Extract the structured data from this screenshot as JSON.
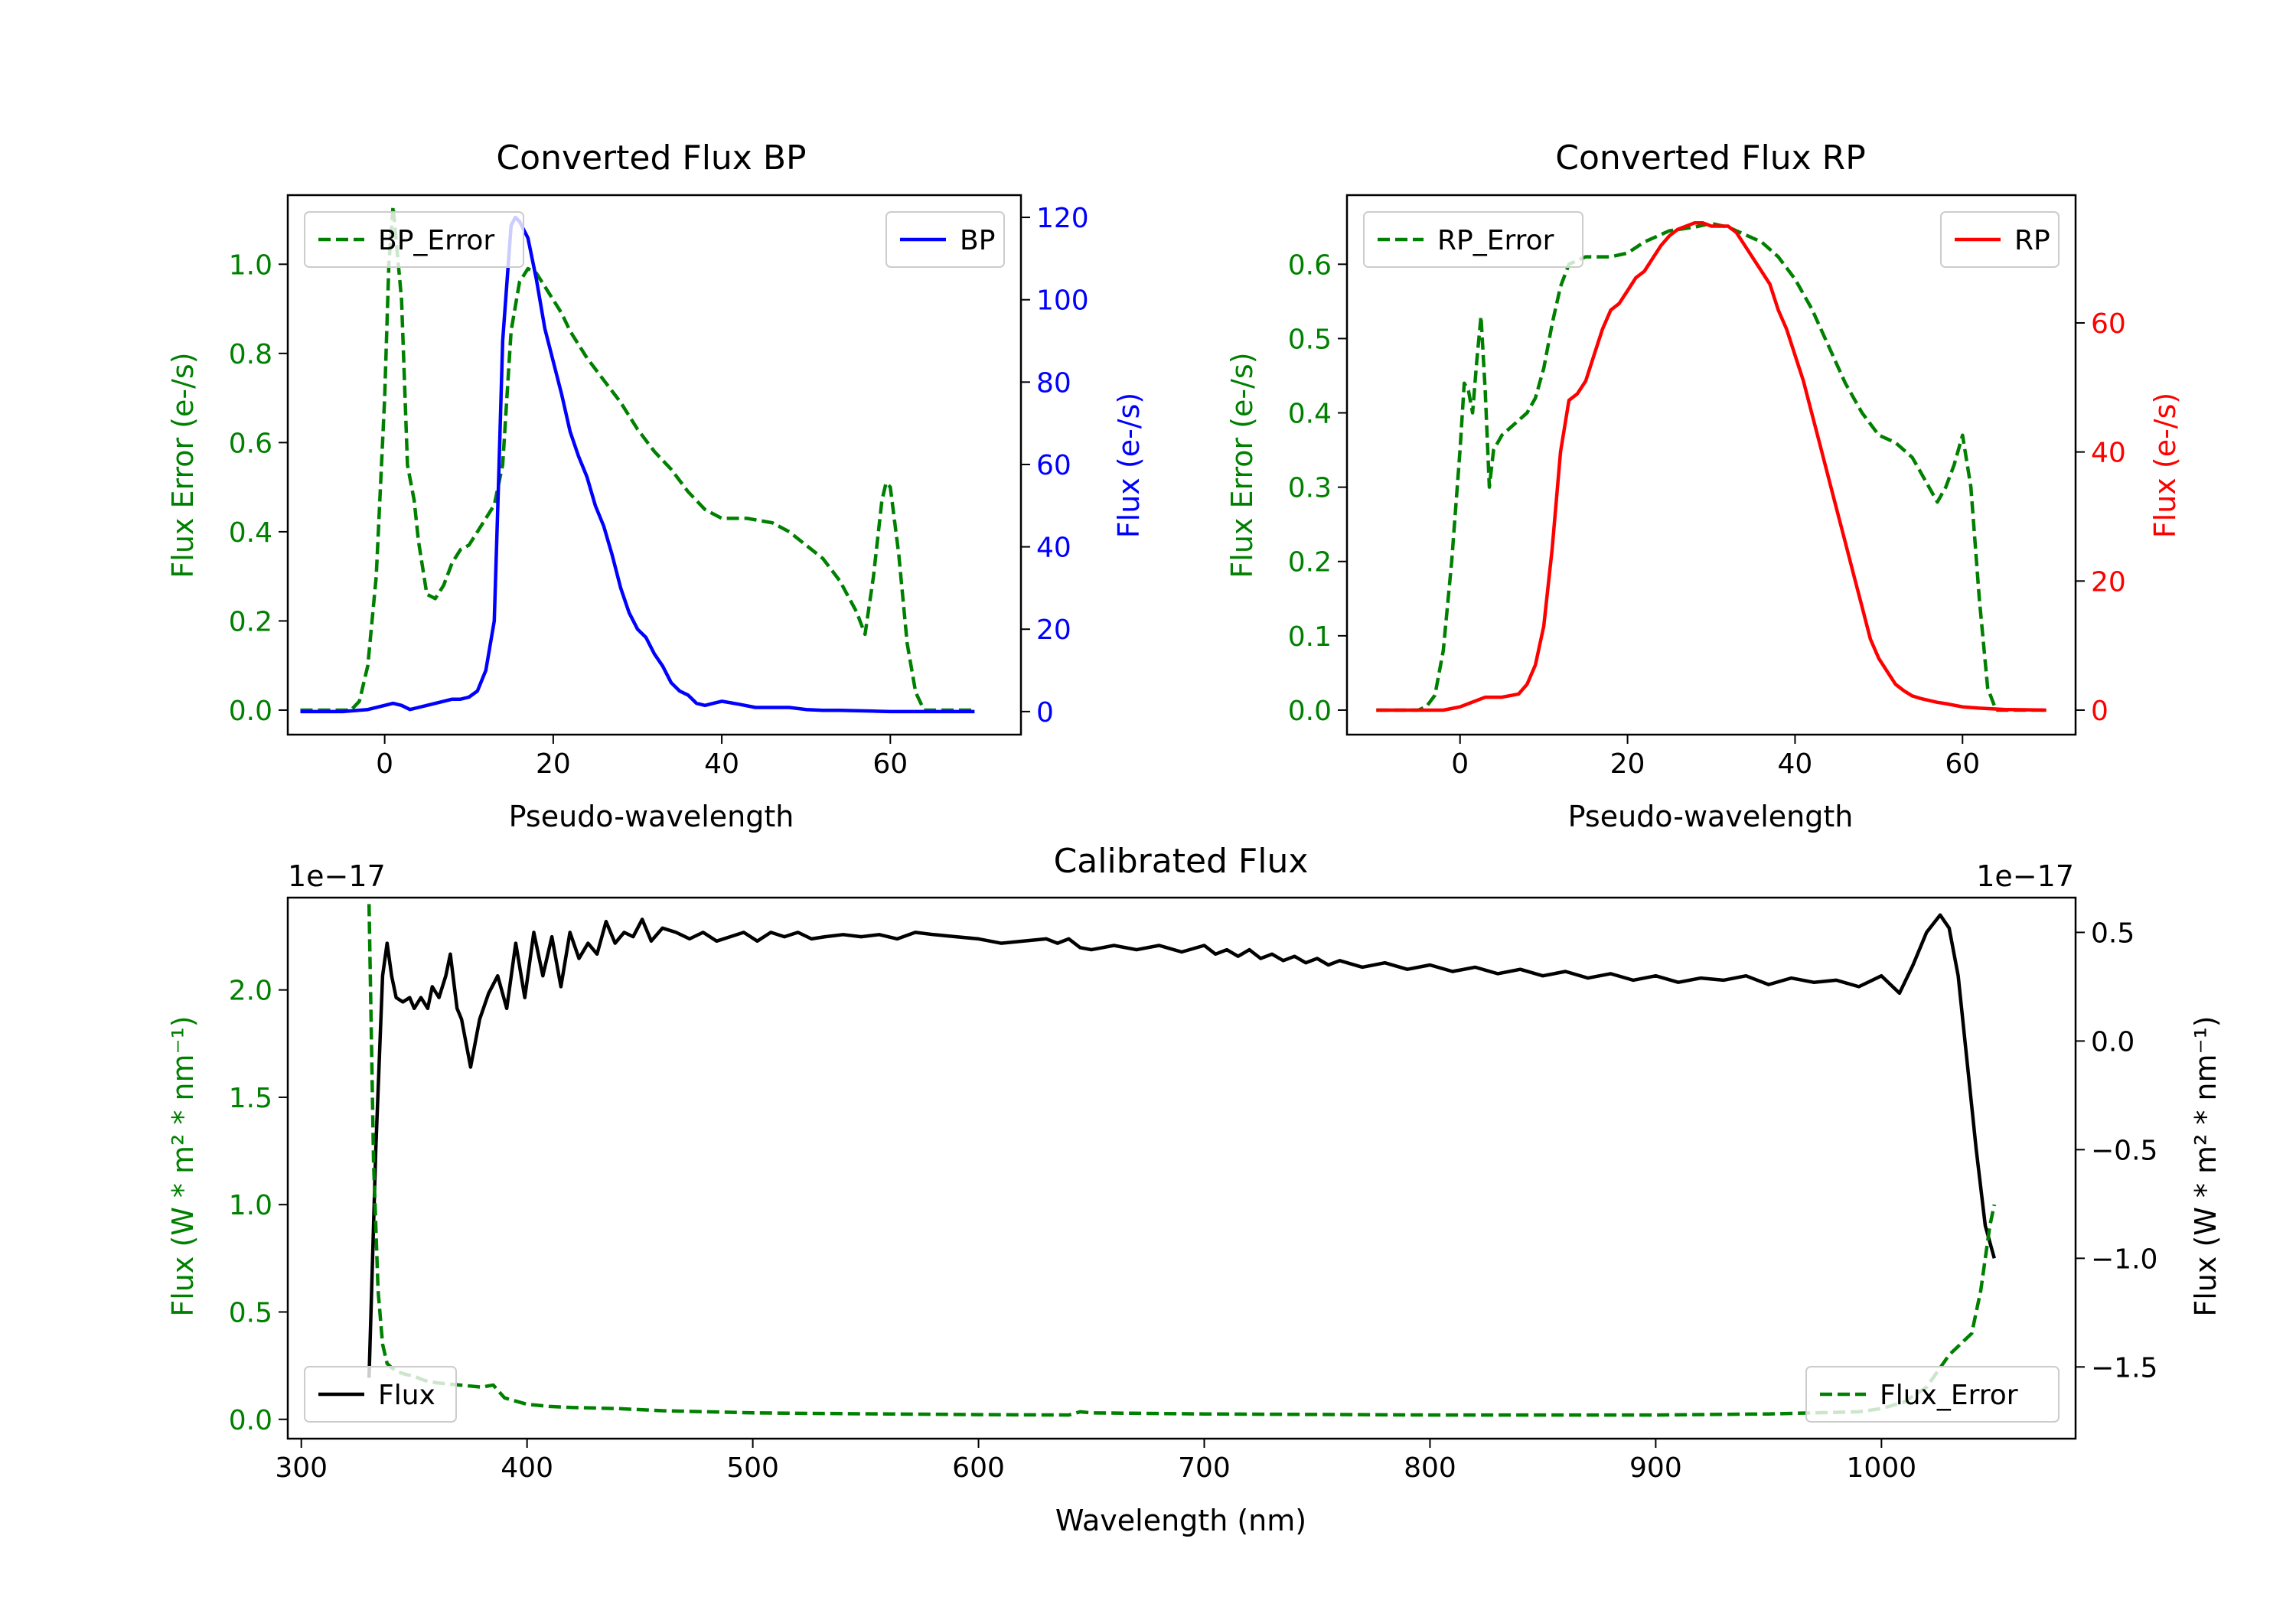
{
  "chart_data": [
    {
      "type": "line",
      "title": "Converted Flux BP",
      "xlabel": "Pseudo-wavelength",
      "ylabel_left": "Flux Error (e-/s)",
      "ylabel_right": "Flux (e-/s)",
      "xlim": [
        -11.5,
        75.5
      ],
      "ylim_left": [
        -0.055,
        1.155
      ],
      "ylim_right": [
        -5.6,
        125.4
      ],
      "xticks": [
        "0",
        "20",
        "40",
        "60"
      ],
      "yticks_left": [
        "0.0",
        "0.2",
        "0.4",
        "0.6",
        "0.8",
        "1.0"
      ],
      "yticks_right": [
        "0",
        "20",
        "40",
        "60",
        "80",
        "100",
        "120"
      ],
      "series": [
        {
          "name": "BP_Error",
          "axis": "left",
          "style": "dashed",
          "color": "#008000",
          "x": [
            -10,
            -4,
            -3,
            -2,
            -1,
            0,
            0.5,
            1,
            2,
            2.7,
            3.5,
            4,
            5,
            6,
            7,
            8,
            9,
            10,
            11,
            12,
            13,
            14,
            15,
            16,
            17,
            18,
            19,
            20,
            21,
            22,
            24,
            26,
            28,
            30,
            32,
            34,
            36,
            38,
            40,
            43,
            46,
            48,
            50,
            52,
            54,
            56,
            57,
            58,
            59,
            59.5,
            60,
            61,
            62,
            63,
            64,
            66,
            70
          ],
          "y": [
            0.0,
            0.0,
            0.02,
            0.1,
            0.3,
            0.7,
            1.0,
            1.13,
            0.92,
            0.55,
            0.47,
            0.38,
            0.26,
            0.25,
            0.28,
            0.33,
            0.36,
            0.37,
            0.4,
            0.43,
            0.46,
            0.55,
            0.85,
            0.96,
            0.99,
            0.98,
            0.95,
            0.92,
            0.89,
            0.85,
            0.79,
            0.74,
            0.69,
            0.63,
            0.58,
            0.54,
            0.49,
            0.45,
            0.43,
            0.43,
            0.42,
            0.4,
            0.37,
            0.34,
            0.29,
            0.22,
            0.17,
            0.3,
            0.47,
            0.51,
            0.5,
            0.35,
            0.15,
            0.04,
            0.0,
            0.0,
            0.0
          ]
        },
        {
          "name": "BP",
          "axis": "right",
          "style": "solid",
          "color": "#0000ff",
          "x": [
            -10,
            -5,
            -2,
            0,
            1,
            2,
            3,
            4,
            5,
            7,
            8,
            9,
            10,
            11,
            12,
            13,
            13.5,
            14,
            15,
            15.5,
            16,
            17,
            18,
            19,
            20,
            21,
            22,
            23,
            24,
            25,
            26,
            27,
            28,
            29,
            30,
            31,
            32,
            33,
            34,
            35,
            36,
            37,
            38,
            39,
            40,
            42,
            44,
            46,
            48,
            50,
            52,
            54,
            56,
            58,
            60,
            65,
            70
          ],
          "y": [
            0,
            0,
            0.5,
            1.5,
            2,
            1.5,
            0.5,
            1,
            1.5,
            2.5,
            3,
            3,
            3.5,
            5,
            10,
            22,
            55,
            90,
            118,
            120,
            119,
            115,
            105,
            93,
            85,
            77,
            68,
            62,
            57,
            50,
            45,
            38,
            30,
            24,
            20,
            18,
            14,
            11,
            7,
            5,
            4,
            2,
            1.5,
            2,
            2.5,
            1.8,
            1,
            1,
            1,
            0.5,
            0.3,
            0.3,
            0.2,
            0.1,
            0,
            0,
            0
          ]
        }
      ],
      "legend": [
        {
          "label": "BP_Error",
          "location": "upper left"
        },
        {
          "label": "BP",
          "location": "upper right"
        }
      ]
    },
    {
      "type": "line",
      "title": "Converted Flux RP",
      "xlabel": "Pseudo-wavelength",
      "ylabel_left": "Flux Error (e-/s)",
      "ylabel_right": "Flux (e-/s)",
      "xlim": [
        -13.5,
        73.5
      ],
      "ylim_left": [
        -0.033,
        0.693
      ],
      "ylim_right": [
        -3.8,
        79.8
      ],
      "xticks": [
        "0",
        "20",
        "40",
        "60"
      ],
      "yticks_left": [
        "0.0",
        "0.1",
        "0.2",
        "0.3",
        "0.4",
        "0.5",
        "0.6"
      ],
      "yticks_right": [
        "0",
        "20",
        "40",
        "60"
      ],
      "series": [
        {
          "name": "RP_Error",
          "axis": "left",
          "style": "dashed",
          "color": "#008000",
          "x": [
            -10,
            -5,
            -4,
            -3,
            -2,
            -1,
            0,
            0.5,
            1,
            1.5,
            2,
            2.5,
            3,
            3.5,
            4,
            5,
            6,
            7,
            8,
            9,
            10,
            11,
            12,
            13,
            14,
            15,
            16,
            18,
            20,
            22,
            25,
            28,
            30,
            32,
            34,
            36,
            38,
            40,
            42,
            44,
            46,
            48,
            50,
            52,
            54,
            55,
            56,
            57,
            58,
            59,
            60,
            61,
            62,
            63,
            64,
            66,
            70
          ],
          "y": [
            0.0,
            0.0,
            0.005,
            0.02,
            0.08,
            0.2,
            0.35,
            0.44,
            0.43,
            0.4,
            0.47,
            0.53,
            0.43,
            0.3,
            0.35,
            0.37,
            0.38,
            0.39,
            0.4,
            0.42,
            0.46,
            0.52,
            0.57,
            0.6,
            0.605,
            0.61,
            0.61,
            0.61,
            0.615,
            0.63,
            0.645,
            0.65,
            0.655,
            0.65,
            0.64,
            0.63,
            0.61,
            0.58,
            0.54,
            0.49,
            0.44,
            0.4,
            0.37,
            0.36,
            0.34,
            0.32,
            0.3,
            0.28,
            0.3,
            0.33,
            0.37,
            0.3,
            0.15,
            0.03,
            0.0,
            0.0,
            0.0
          ]
        },
        {
          "name": "RP",
          "axis": "right",
          "style": "solid",
          "color": "#ff0000",
          "x": [
            -10,
            -5,
            -2,
            0,
            1,
            2,
            3,
            5,
            7,
            8,
            9,
            10,
            11,
            12,
            13,
            14,
            15,
            16,
            17,
            18,
            19,
            20,
            21,
            22,
            23,
            24,
            25,
            26,
            27,
            28,
            29,
            30,
            31,
            32,
            33,
            34,
            35,
            36,
            37,
            38,
            39,
            40,
            41,
            42,
            43,
            44,
            45,
            46,
            47,
            48,
            49,
            50,
            51,
            52,
            53,
            54,
            55,
            56,
            57,
            58,
            60,
            62,
            65,
            70
          ],
          "y": [
            0,
            0,
            0,
            0.5,
            1,
            1.5,
            2,
            2,
            2.5,
            4,
            7,
            13,
            25,
            40,
            48,
            49,
            51,
            55,
            59,
            62,
            63,
            65,
            67,
            68,
            70,
            72,
            73.5,
            74.5,
            75,
            75.5,
            75.5,
            75,
            75,
            75,
            74,
            72,
            70,
            68,
            66,
            62,
            59,
            55,
            51,
            46,
            41,
            36,
            31,
            26,
            21,
            16,
            11,
            8,
            6,
            4,
            3,
            2.2,
            1.8,
            1.5,
            1.2,
            1,
            0.5,
            0.3,
            0.1,
            0
          ]
        }
      ],
      "legend": [
        {
          "label": "RP_Error",
          "location": "upper left"
        },
        {
          "label": "RP",
          "location": "upper right"
        }
      ]
    },
    {
      "type": "line",
      "title": "Calibrated Flux",
      "xlabel": "Wavelength (nm)",
      "ylabel_left": "Flux (W * m² * nm⁻¹)",
      "ylabel_right": "Flux (W * m² * nm⁻¹)",
      "offset_left": "1e−17",
      "offset_right": "1e−17",
      "xlim": [
        294,
        1086
      ],
      "ylim_left": [
        -0.09,
        2.43
      ],
      "ylim_right": [
        -1.83,
        0.66
      ],
      "xticks": [
        "300",
        "400",
        "500",
        "600",
        "700",
        "800",
        "900",
        "1000"
      ],
      "yticks_left": [
        "0.0",
        "0.5",
        "1.0",
        "1.5",
        "2.0"
      ],
      "yticks_right": [
        "−1.5",
        "−1.0",
        "−0.5",
        "0.0",
        "0.5"
      ],
      "series": [
        {
          "name": "Flux",
          "axis": "right",
          "style": "solid",
          "color": "#000000",
          "x": [
            330,
            333,
            336,
            338,
            340,
            342,
            345,
            348,
            350,
            353,
            356,
            358,
            361,
            364,
            366,
            369,
            371,
            375,
            379,
            383,
            387,
            391,
            395,
            399,
            403,
            407,
            411,
            415,
            419,
            423,
            427,
            431,
            435,
            439,
            443,
            447,
            451,
            455,
            460,
            466,
            472,
            478,
            484,
            490,
            496,
            502,
            508,
            514,
            520,
            526,
            532,
            540,
            548,
            556,
            564,
            572,
            580,
            590,
            600,
            610,
            620,
            630,
            635,
            640,
            645,
            650,
            655,
            660,
            670,
            680,
            690,
            700,
            705,
            710,
            715,
            720,
            725,
            730,
            735,
            740,
            745,
            750,
            755,
            760,
            770,
            780,
            790,
            800,
            810,
            820,
            830,
            840,
            850,
            860,
            870,
            880,
            890,
            900,
            910,
            920,
            930,
            940,
            950,
            960,
            970,
            980,
            990,
            1000,
            1008,
            1014,
            1020,
            1026,
            1030,
            1034,
            1038,
            1042,
            1046,
            1050
          ],
          "y": [
            -1.55,
            -0.5,
            0.3,
            0.45,
            0.3,
            0.2,
            0.18,
            0.2,
            0.15,
            0.2,
            0.15,
            0.25,
            0.2,
            0.3,
            0.4,
            0.15,
            0.1,
            -0.12,
            0.1,
            0.22,
            0.3,
            0.15,
            0.45,
            0.2,
            0.5,
            0.3,
            0.48,
            0.25,
            0.5,
            0.38,
            0.45,
            0.4,
            0.55,
            0.45,
            0.5,
            0.48,
            0.56,
            0.46,
            0.52,
            0.5,
            0.47,
            0.5,
            0.46,
            0.48,
            0.5,
            0.46,
            0.5,
            0.48,
            0.5,
            0.47,
            0.48,
            0.49,
            0.48,
            0.49,
            0.47,
            0.5,
            0.49,
            0.48,
            0.47,
            0.45,
            0.46,
            0.47,
            0.45,
            0.47,
            0.43,
            0.42,
            0.43,
            0.44,
            0.42,
            0.44,
            0.41,
            0.44,
            0.4,
            0.42,
            0.39,
            0.42,
            0.38,
            0.4,
            0.37,
            0.39,
            0.36,
            0.38,
            0.35,
            0.37,
            0.34,
            0.36,
            0.33,
            0.35,
            0.32,
            0.34,
            0.31,
            0.33,
            0.3,
            0.32,
            0.29,
            0.31,
            0.28,
            0.3,
            0.27,
            0.29,
            0.28,
            0.3,
            0.26,
            0.29,
            0.27,
            0.28,
            0.25,
            0.3,
            0.22,
            0.35,
            0.5,
            0.58,
            0.52,
            0.3,
            -0.1,
            -0.5,
            -0.85,
            -1.0
          ]
        },
        {
          "name": "Flux_Error",
          "axis": "left",
          "style": "dashed",
          "color": "#008000",
          "x": [
            330,
            332,
            334,
            336,
            338,
            340,
            343,
            346,
            350,
            355,
            360,
            370,
            380,
            385,
            390,
            400,
            410,
            420,
            440,
            460,
            480,
            500,
            520,
            560,
            600,
            640,
            645,
            650,
            700,
            800,
            900,
            950,
            990,
            1000,
            1010,
            1020,
            1030,
            1040,
            1044,
            1048,
            1050
          ],
          "y": [
            2.4,
            1.2,
            0.6,
            0.35,
            0.26,
            0.24,
            0.22,
            0.21,
            0.2,
            0.18,
            0.17,
            0.16,
            0.15,
            0.16,
            0.1,
            0.07,
            0.06,
            0.055,
            0.05,
            0.04,
            0.035,
            0.03,
            0.028,
            0.025,
            0.022,
            0.02,
            0.035,
            0.03,
            0.025,
            0.02,
            0.02,
            0.025,
            0.035,
            0.05,
            0.08,
            0.15,
            0.3,
            0.4,
            0.6,
            0.9,
            1.0
          ]
        }
      ],
      "legend": [
        {
          "label": "Flux",
          "location": "lower left"
        },
        {
          "label": "Flux_Error",
          "location": "lower right"
        }
      ]
    }
  ]
}
